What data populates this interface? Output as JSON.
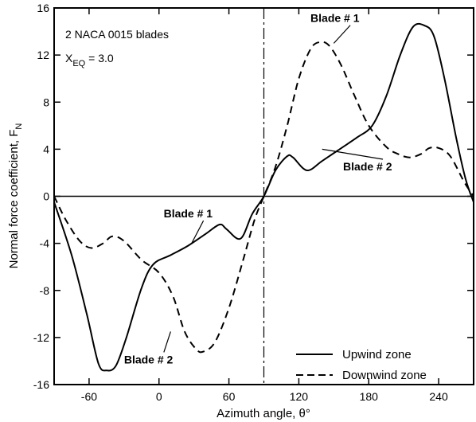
{
  "chart_data": {
    "type": "line",
    "title": "",
    "xlabel": "Azimuth angle, θ°",
    "ylabel": "Normal force coefficient, F",
    "ylabel_sub": "N",
    "xlim": [
      -90,
      270
    ],
    "ylim": [
      -16,
      16
    ],
    "xticks": [
      -60,
      0,
      60,
      120,
      180,
      240
    ],
    "yticks": [
      -16,
      -12,
      -8,
      -4,
      0,
      4,
      8,
      12,
      16
    ],
    "zero_line": true,
    "vertical_marker_x": 90,
    "legend_position": "bottom-right",
    "annotation_box": {
      "line1": "2 NACA 0015 blades",
      "line2_main": "X",
      "line2_sub": "EQ",
      "line2_rest": " = 3.0"
    },
    "series": [
      {
        "name": "Upwind zone",
        "style": "solid",
        "points": [
          [
            -90,
            -0.5
          ],
          [
            -75,
            -5
          ],
          [
            -62,
            -10
          ],
          [
            -52,
            -14.2
          ],
          [
            -45,
            -14.8
          ],
          [
            -37,
            -14.4
          ],
          [
            -28,
            -12
          ],
          [
            -15,
            -7.8
          ],
          [
            -5,
            -5.8
          ],
          [
            10,
            -5
          ],
          [
            25,
            -4.2
          ],
          [
            40,
            -3.2
          ],
          [
            52,
            -2.4
          ],
          [
            58,
            -2.8
          ],
          [
            70,
            -3.6
          ],
          [
            80,
            -1.5
          ],
          [
            90,
            0
          ],
          [
            100,
            2.2
          ],
          [
            110,
            3.4
          ],
          [
            115,
            3.3
          ],
          [
            127,
            2.2
          ],
          [
            140,
            3
          ],
          [
            155,
            4
          ],
          [
            170,
            5
          ],
          [
            183,
            6
          ],
          [
            195,
            8.5
          ],
          [
            207,
            12
          ],
          [
            218,
            14.4
          ],
          [
            228,
            14.5
          ],
          [
            236,
            13.6
          ],
          [
            245,
            10
          ],
          [
            255,
            5
          ],
          [
            263,
            1.5
          ],
          [
            270,
            -0.5
          ]
        ]
      },
      {
        "name": "Downwind zone",
        "style": "dashed",
        "points": [
          [
            -90,
            0
          ],
          [
            -80,
            -2
          ],
          [
            -68,
            -3.8
          ],
          [
            -58,
            -4.4
          ],
          [
            -48,
            -4
          ],
          [
            -40,
            -3.4
          ],
          [
            -30,
            -3.8
          ],
          [
            -15,
            -5.4
          ],
          [
            0,
            -6.5
          ],
          [
            12,
            -8.5
          ],
          [
            22,
            -11.5
          ],
          [
            32,
            -13
          ],
          [
            38,
            -13.2
          ],
          [
            48,
            -12.4
          ],
          [
            60,
            -9.5
          ],
          [
            72,
            -5.5
          ],
          [
            82,
            -2
          ],
          [
            90,
            0
          ],
          [
            100,
            2.5
          ],
          [
            110,
            6
          ],
          [
            120,
            10
          ],
          [
            130,
            12.5
          ],
          [
            138,
            13.1
          ],
          [
            146,
            12.8
          ],
          [
            156,
            11.2
          ],
          [
            168,
            8.5
          ],
          [
            180,
            6
          ],
          [
            195,
            4.2
          ],
          [
            205,
            3.6
          ],
          [
            215,
            3.3
          ],
          [
            225,
            3.6
          ],
          [
            232,
            4.1
          ],
          [
            240,
            4.1
          ],
          [
            250,
            3.4
          ],
          [
            262,
            1.2
          ],
          [
            270,
            0
          ]
        ]
      }
    ],
    "annotations": [
      {
        "text": "Blade # 1",
        "x": 130,
        "y": 14.8,
        "arrow_to": [
          150,
          13
        ]
      },
      {
        "text": "Blade # 2",
        "x": 158,
        "y": 2.2,
        "arrow_to": [
          140,
          4
        ]
      },
      {
        "text": "Blade # 1",
        "x": 4,
        "y": -1.8,
        "arrow_to": [
          28,
          -4
        ]
      },
      {
        "text": "Blade # 2",
        "x": -30,
        "y": -14.2,
        "arrow_to": [
          10,
          -11.5
        ]
      }
    ]
  }
}
